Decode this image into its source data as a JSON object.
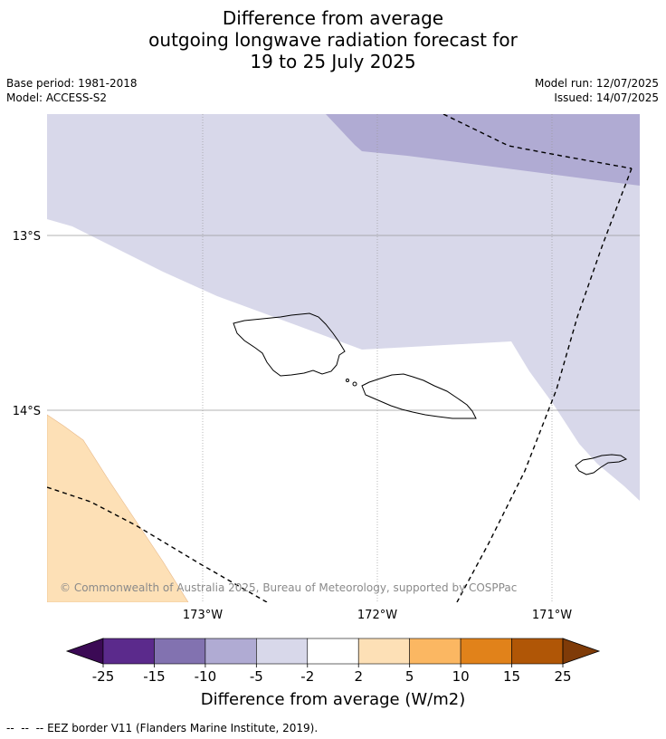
{
  "title": {
    "line1": "Difference from average",
    "line2": "outgoing longwave radiation forecast for",
    "line3": "19 to 25 July 2025"
  },
  "meta": {
    "base_period": "Base period: 1981-2018",
    "model": "Model: ACCESS-S2",
    "model_run": "Model run: 12/07/2025",
    "issued": "Issued: 14/07/2025"
  },
  "map": {
    "lat_labels": [
      "13°S",
      "14°S"
    ],
    "lon_labels": [
      "173°W",
      "172°W",
      "171°W"
    ],
    "copyright": "© Commonwealth of Australia 2025, Bureau of Meteorology, supported by COSPPac",
    "colors": {
      "band_neg5_neg2": "#d8d8ea",
      "band_neg10_neg5": "#b0abd3",
      "band_2_5": "#fde0b6",
      "coastline": "#000000",
      "gridline": "#9a9a9a"
    }
  },
  "colorbar": {
    "title": "Difference from average (W/m2)",
    "tick_labels": [
      "-25",
      "-15",
      "-10",
      "-5",
      "-2",
      "2",
      "5",
      "10",
      "15",
      "25"
    ],
    "colors": {
      "under": "#3b0a55",
      "segments": [
        "#5b2a8c",
        "#8272b0",
        "#b0abd3",
        "#d8d8ea",
        "#ffffff",
        "#fde0b6",
        "#fbb762",
        "#e1821a",
        "#b05606"
      ],
      "over": "#7f3b08"
    }
  },
  "footer": {
    "legend_text": "EEZ border V11 (Flanders Marine Institute, 2019)."
  }
}
